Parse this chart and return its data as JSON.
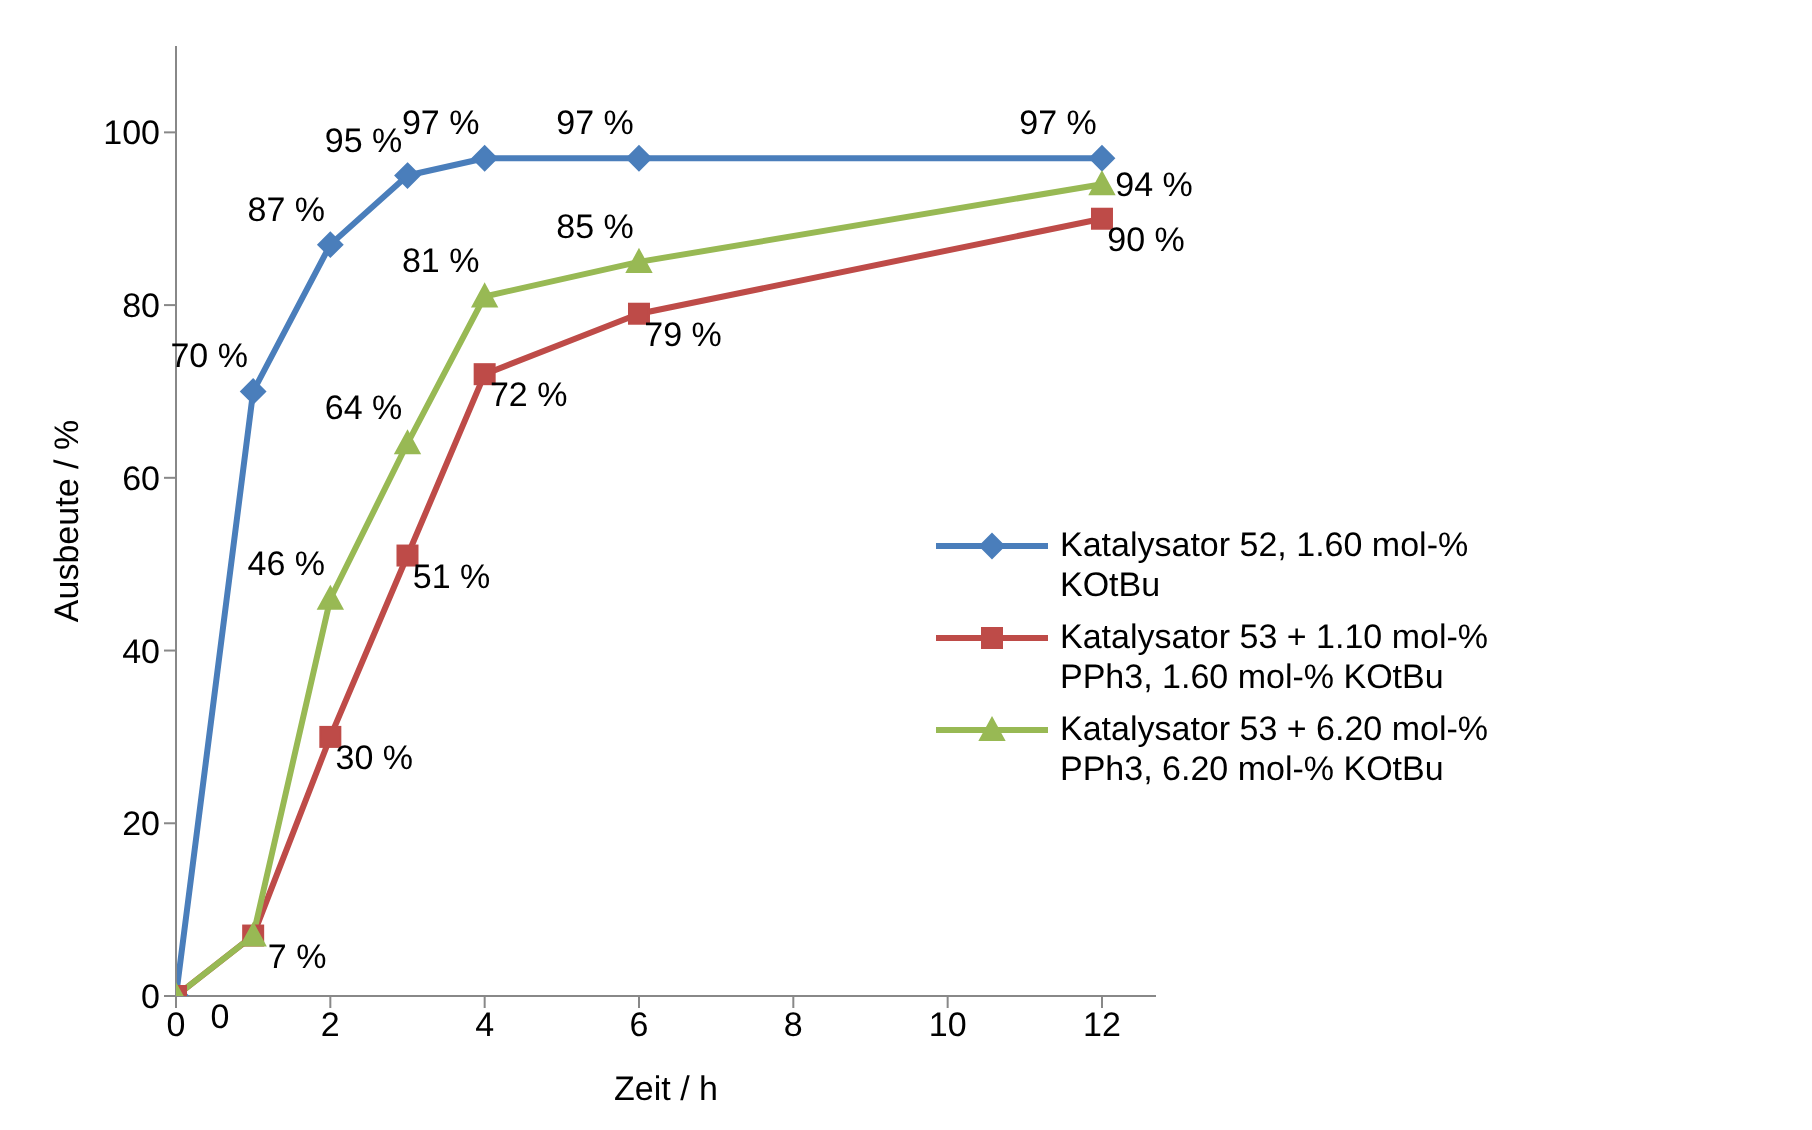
{
  "chart_data": {
    "type": "line",
    "xlabel": "Zeit / h",
    "ylabel": "Ausbeute / %",
    "x": [
      0,
      1,
      2,
      3,
      4,
      6,
      12
    ],
    "xlim": [
      0,
      12.7
    ],
    "xticks": [
      0,
      2,
      4,
      6,
      8,
      10,
      12
    ],
    "ylim": [
      0,
      110
    ],
    "yticks": [
      0,
      20,
      40,
      60,
      80,
      100
    ],
    "legend": "right",
    "series": [
      {
        "name": "Katalysator 52, 1.60 mol-% KOtBu",
        "color": "#4a7ebb",
        "marker": "diamond",
        "values": [
          0,
          70,
          87,
          95,
          97,
          97,
          97
        ],
        "value_labels": [
          null,
          "70 %",
          "87 %",
          "95 %",
          "97 %",
          "97 %",
          "97 %"
        ]
      },
      {
        "name": "Katalysator 53 + 1.10 mol-% PPh3, 1.60 mol-% KOtBu",
        "color": "#be4b48",
        "marker": "square",
        "values": [
          0,
          7,
          30,
          51,
          72,
          79,
          90
        ],
        "value_labels": [
          "0",
          "7 %",
          "30 %",
          "51 %",
          "72 %",
          "79 %",
          "90 %"
        ]
      },
      {
        "name": "Katalysator 53 + 6.20 mol-% PPh3, 6.20 mol-% KOtBu",
        "color": "#98b954",
        "marker": "triangle",
        "values": [
          0,
          7,
          46,
          64,
          81,
          85,
          94
        ],
        "value_labels": [
          null,
          null,
          "46 %",
          "64 %",
          "81 %",
          "85 %",
          "94 %"
        ]
      }
    ]
  }
}
